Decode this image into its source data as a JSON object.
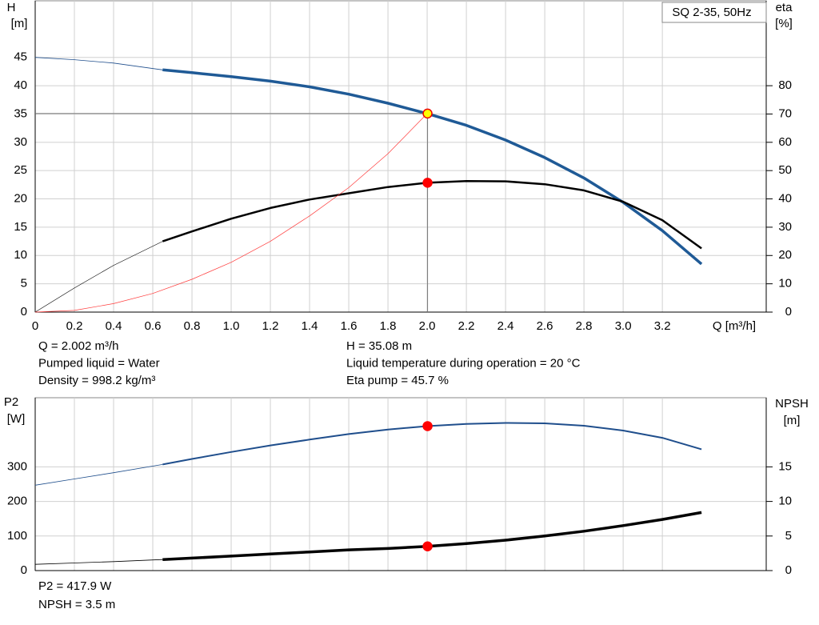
{
  "chart_data": [
    {
      "type": "line",
      "title": "SQ 2-35, 50Hz",
      "xlabel": "Q [m³/h]",
      "ylabel": [
        "H",
        "[m]"
      ],
      "y2label": [
        "eta",
        "[%]"
      ],
      "xlim": [
        0,
        3.73
      ],
      "xticks": [
        0,
        0.2,
        0.4,
        0.6,
        0.8,
        {
          "value": 1,
          "label": "1.0"
        },
        1.2,
        1.4,
        1.6,
        1.8,
        {
          "value": 2,
          "label": "2.0"
        },
        2.2,
        2.4,
        2.6,
        2.8,
        {
          "value": 3,
          "label": "3.0"
        },
        3.2
      ],
      "ylim": [
        0,
        55
      ],
      "yticks": [
        0,
        5,
        10,
        15,
        20,
        25,
        30,
        35,
        40,
        45
      ],
      "y2lim": [
        0,
        110
      ],
      "y2ticks": [
        0,
        10,
        20,
        30,
        40,
        50,
        60,
        70,
        80
      ],
      "grid": true,
      "series": [
        {
          "axis": "y",
          "color": "#1f4e8c",
          "width": 0.8,
          "x": [
            0,
            0.2,
            0.4,
            0.65
          ],
          "values": [
            45,
            44.6,
            44,
            42.8
          ]
        },
        {
          "axis": "y",
          "color": "#1f5a96",
          "width": 3.5,
          "x": [
            0.65,
            0.8,
            1.0,
            1.2,
            1.4,
            1.6,
            1.8,
            2.0,
            2.2,
            2.4,
            2.6,
            2.8,
            3.0,
            3.2,
            3.4
          ],
          "values": [
            42.8,
            42.3,
            41.6,
            40.8,
            39.8,
            38.5,
            36.9,
            35.08,
            33,
            30.4,
            27.3,
            23.7,
            19.4,
            14.4,
            8.5
          ]
        },
        {
          "axis": "y2",
          "color": "#000000",
          "width": 0.6,
          "x": [
            0,
            0.2,
            0.4,
            0.65
          ],
          "values": [
            0,
            8.5,
            16.5,
            25
          ]
        },
        {
          "axis": "y2",
          "color": "#000000",
          "width": 2.5,
          "x": [
            0.65,
            0.8,
            1.0,
            1.2,
            1.4,
            1.6,
            1.8,
            2.0,
            2.2,
            2.4,
            2.6,
            2.8,
            3.0,
            3.2,
            3.4
          ],
          "values": [
            25,
            28.5,
            33,
            36.8,
            39.8,
            42,
            44.2,
            45.7,
            46.3,
            46.2,
            45.2,
            43,
            39,
            32.5,
            22.5
          ]
        },
        {
          "axis": "y",
          "color": "#ff3b3b",
          "width": 0.7,
          "x": [
            0,
            0.2,
            0.4,
            0.6,
            0.8,
            1.0,
            1.2,
            1.4,
            1.6,
            1.8,
            2.0
          ],
          "values": [
            0,
            0.3,
            1.5,
            3.3,
            5.8,
            8.8,
            12.5,
            17,
            22,
            28,
            35.08
          ]
        }
      ],
      "markers": [
        {
          "axis": "y",
          "x": 2.002,
          "y": 35.08,
          "color": "#ffff00",
          "crosshair": true
        },
        {
          "axis": "y2",
          "x": 2.002,
          "y": 45.7,
          "color": "#ff0000"
        }
      ],
      "annotations": [
        "Q = 2.002 m³/h",
        "Pumped liquid = Water",
        "Density = 998.2 kg/m³",
        "H = 35.08 m",
        "Liquid temperature during operation = 20 °C",
        "Eta pump = 45.7 %"
      ]
    },
    {
      "type": "line",
      "ylabel": [
        "P2",
        "[W]"
      ],
      "y2label": [
        "NPSH",
        "[m]"
      ],
      "xlim": [
        0,
        3.73
      ],
      "ylim": [
        0,
        500
      ],
      "yticks": [
        0,
        100,
        200,
        300
      ],
      "y2lim": [
        0,
        25
      ],
      "y2ticks": [
        0,
        5,
        10,
        15
      ],
      "grid": true,
      "series": [
        {
          "axis": "y",
          "color": "#1f4e8c",
          "width": 0.8,
          "x": [
            0,
            0.2,
            0.4,
            0.65
          ],
          "values": [
            247,
            265,
            283,
            307
          ]
        },
        {
          "axis": "y",
          "color": "#1f4e8c",
          "width": 2,
          "x": [
            0.65,
            0.8,
            1.0,
            1.2,
            1.4,
            1.6,
            1.8,
            2.0,
            2.2,
            2.4,
            2.6,
            2.8,
            3.0,
            3.2,
            3.4
          ],
          "values": [
            307,
            323,
            343,
            362,
            379,
            395,
            408,
            417.9,
            424,
            427,
            426,
            419,
            405,
            384,
            351
          ]
        },
        {
          "axis": "y2",
          "color": "#000000",
          "width": 0.8,
          "x": [
            0,
            0.2,
            0.4,
            0.65
          ],
          "values": [
            0.9,
            1.1,
            1.3,
            1.6
          ]
        },
        {
          "axis": "y2",
          "color": "#000000",
          "width": 3.5,
          "x": [
            0.65,
            0.8,
            1.0,
            1.2,
            1.4,
            1.6,
            1.8,
            2.0,
            2.2,
            2.4,
            2.6,
            2.8,
            3.0,
            3.2,
            3.4
          ],
          "values": [
            1.6,
            1.8,
            2.1,
            2.4,
            2.7,
            3.0,
            3.2,
            3.5,
            3.9,
            4.4,
            5.0,
            5.7,
            6.5,
            7.4,
            8.4
          ]
        }
      ],
      "markers": [
        {
          "axis": "y",
          "x": 2.002,
          "y": 417.9,
          "color": "#ff0000"
        },
        {
          "axis": "y2",
          "x": 2.002,
          "y": 3.5,
          "color": "#ff0000"
        }
      ],
      "annotations": [
        "P2 = 417.9 W",
        "NPSH = 3.5 m"
      ]
    }
  ]
}
